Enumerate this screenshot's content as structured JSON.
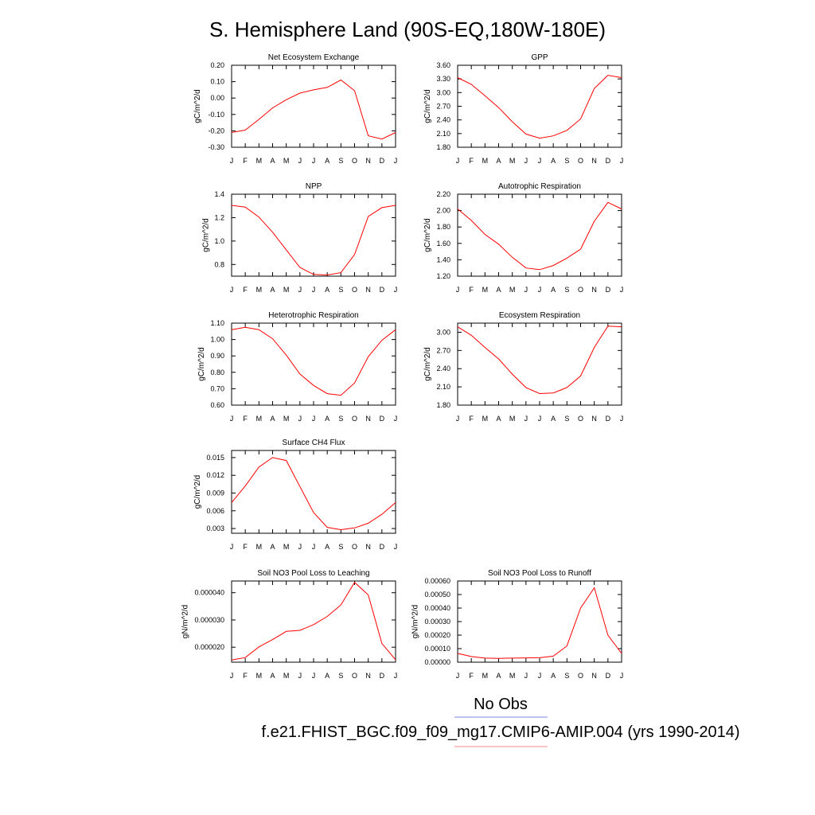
{
  "page_title": "S. Hemisphere Land (90S-EQ,180W-180E)",
  "legend": {
    "obs_label": "No Obs",
    "obs_color": "#7a86e6",
    "case_label": "f.e21.FHIST_BGC.f09_f09_mg17.CMIP6-AMIP.004 (yrs 1990-2014)",
    "case_color": "#f08a8a"
  },
  "colors": {
    "series": "#ff0000",
    "axis": "#000000"
  },
  "chart_data": [
    {
      "type": "line",
      "title": "Net Ecosystem Exchange",
      "ylabel": "gC/m^2/d",
      "categories": [
        "J",
        "F",
        "M",
        "A",
        "M",
        "J",
        "J",
        "A",
        "S",
        "O",
        "N",
        "D",
        "J"
      ],
      "values": [
        -0.21,
        -0.195,
        -0.13,
        -0.06,
        -0.01,
        0.03,
        0.05,
        0.065,
        0.11,
        0.045,
        -0.23,
        -0.25,
        -0.21
      ],
      "ylim": [
        -0.3,
        0.2
      ],
      "yticks": [
        "-0.30",
        "-0.20",
        "-0.10",
        "0.00",
        "0.10",
        "0.20"
      ]
    },
    {
      "type": "line",
      "title": "GPP",
      "ylabel": "gC/m^2/d",
      "categories": [
        "J",
        "F",
        "M",
        "A",
        "M",
        "J",
        "J",
        "A",
        "S",
        "O",
        "N",
        "D",
        "J"
      ],
      "values": [
        3.33,
        3.18,
        2.93,
        2.67,
        2.36,
        2.09,
        2.0,
        2.05,
        2.17,
        2.42,
        3.09,
        3.38,
        3.33
      ],
      "ylim": [
        1.8,
        3.6
      ],
      "yticks": [
        "1.80",
        "2.10",
        "2.40",
        "2.70",
        "3.00",
        "3.30",
        "3.60"
      ]
    },
    {
      "type": "line",
      "title": "NPP",
      "ylabel": "gC/m^2/d",
      "categories": [
        "J",
        "F",
        "M",
        "A",
        "M",
        "J",
        "J",
        "A",
        "S",
        "O",
        "N",
        "D",
        "J"
      ],
      "values": [
        1.305,
        1.29,
        1.205,
        1.075,
        0.925,
        0.775,
        0.715,
        0.71,
        0.73,
        0.885,
        1.21,
        1.285,
        1.305
      ],
      "ylim": [
        0.7,
        1.4
      ],
      "yticks": [
        "0.8",
        "1.0",
        "1.2",
        "1.4"
      ]
    },
    {
      "type": "line",
      "title": "Autotrophic Respiration",
      "ylabel": "gC/m^2/d",
      "categories": [
        "J",
        "F",
        "M",
        "A",
        "M",
        "J",
        "J",
        "A",
        "S",
        "O",
        "N",
        "D",
        "J"
      ],
      "values": [
        2.02,
        1.88,
        1.71,
        1.59,
        1.43,
        1.3,
        1.28,
        1.33,
        1.42,
        1.53,
        1.87,
        2.1,
        2.02
      ],
      "ylim": [
        1.2,
        2.2
      ],
      "yticks": [
        "1.20",
        "1.40",
        "1.60",
        "1.80",
        "2.00",
        "2.20"
      ]
    },
    {
      "type": "line",
      "title": "Heterotrophic Respiration",
      "ylabel": "gC/m^2/d",
      "categories": [
        "J",
        "F",
        "M",
        "A",
        "M",
        "J",
        "J",
        "A",
        "S",
        "O",
        "N",
        "D",
        "J"
      ],
      "values": [
        1.06,
        1.075,
        1.06,
        1.005,
        0.905,
        0.79,
        0.72,
        0.67,
        0.66,
        0.735,
        0.895,
        0.995,
        1.06
      ],
      "ylim": [
        0.6,
        1.1
      ],
      "yticks": [
        "0.60",
        "0.70",
        "0.80",
        "0.90",
        "1.00",
        "1.10"
      ]
    },
    {
      "type": "line",
      "title": "Ecosystem Respiration",
      "ylabel": "gC/m^2/d",
      "categories": [
        "J",
        "F",
        "M",
        "A",
        "M",
        "J",
        "J",
        "A",
        "S",
        "O",
        "N",
        "D",
        "J"
      ],
      "values": [
        3.09,
        2.95,
        2.75,
        2.56,
        2.31,
        2.09,
        1.99,
        2.0,
        2.09,
        2.28,
        2.75,
        3.1,
        3.09
      ],
      "ylim": [
        1.8,
        3.15
      ],
      "yticks": [
        "1.80",
        "2.10",
        "2.40",
        "2.70",
        "3.00"
      ]
    },
    {
      "type": "line",
      "title": "Surface CH4 Flux",
      "ylabel": "gC/m^2/d",
      "categories": [
        "J",
        "F",
        "M",
        "A",
        "M",
        "J",
        "J",
        "A",
        "S",
        "O",
        "N",
        "D",
        "J"
      ],
      "values": [
        0.0074,
        0.0102,
        0.0134,
        0.015,
        0.0145,
        0.0101,
        0.0057,
        0.0032,
        0.0028,
        0.0031,
        0.0039,
        0.0054,
        0.0074
      ],
      "ylim": [
        0.0022,
        0.0162
      ],
      "yticks": [
        "0.003",
        "0.006",
        "0.009",
        "0.012",
        "0.015"
      ]
    },
    {
      "type": "line",
      "title": "Soil NO3 Pool Loss to Leaching",
      "ylabel": "gN/m^2/d",
      "categories": [
        "J",
        "F",
        "M",
        "A",
        "M",
        "J",
        "J",
        "A",
        "S",
        "O",
        "N",
        "D",
        "J"
      ],
      "values": [
        1.53e-05,
        1.62e-05,
        2.01e-05,
        2.28e-05,
        2.58e-05,
        2.62e-05,
        2.83e-05,
        3.13e-05,
        3.55e-05,
        4.38e-05,
        3.92e-05,
        2.14e-05,
        1.54e-05
      ],
      "ylim": [
        1.45e-05,
        4.43e-05
      ],
      "yticks": [
        "0.000020",
        "0.000030",
        "0.000040"
      ]
    },
    {
      "type": "line",
      "title": "Soil NO3 Pool Loss to Runoff",
      "ylabel": "gN/m^2/d",
      "categories": [
        "J",
        "F",
        "M",
        "A",
        "M",
        "J",
        "J",
        "A",
        "S",
        "O",
        "N",
        "D",
        "J"
      ],
      "values": [
        6.5e-05,
        4.2e-05,
        3e-05,
        2.8e-05,
        3e-05,
        3.2e-05,
        3.3e-05,
        4.5e-05,
        0.00012,
        0.0004,
        0.00055,
        0.0002,
        6.5e-05
      ],
      "ylim": [
        0.0,
        0.0006
      ],
      "yticks": [
        "0.00000",
        "0.00010",
        "0.00020",
        "0.00030",
        "0.00040",
        "0.00050",
        "0.00060"
      ]
    }
  ]
}
